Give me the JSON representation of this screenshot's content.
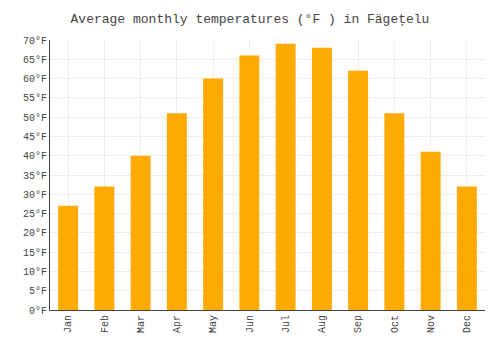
{
  "chart_data": {
    "type": "bar",
    "title": "Average monthly temperatures (°F ) in Fägețelu",
    "categories": [
      "Jan",
      "Feb",
      "Mar",
      "Apr",
      "May",
      "Jun",
      "Jul",
      "Aug",
      "Sep",
      "Oct",
      "Nov",
      "Dec"
    ],
    "values": [
      27,
      32,
      40,
      51,
      60,
      66,
      69,
      68,
      62,
      51,
      41,
      32
    ],
    "color": "#FFAA00",
    "ylim": [
      0,
      70
    ],
    "yticks": [
      {
        "value": 0,
        "label": "0°F"
      },
      {
        "value": 5,
        "label": "5°F"
      },
      {
        "value": 10,
        "label": "10°F"
      },
      {
        "value": 15,
        "label": "15°F"
      },
      {
        "value": 20,
        "label": "20°F"
      },
      {
        "value": 25,
        "label": "25°F"
      },
      {
        "value": 30,
        "label": "30°F"
      },
      {
        "value": 35,
        "label": "35°F"
      },
      {
        "value": 40,
        "label": "40°F"
      },
      {
        "value": 45,
        "label": "45°F"
      },
      {
        "value": 50,
        "label": "50°F"
      },
      {
        "value": 55,
        "label": "55°F"
      },
      {
        "value": 60,
        "label": "60°F"
      },
      {
        "value": 65,
        "label": "65°F"
      },
      {
        "value": 70,
        "label": "70°F"
      }
    ],
    "grid": true
  }
}
